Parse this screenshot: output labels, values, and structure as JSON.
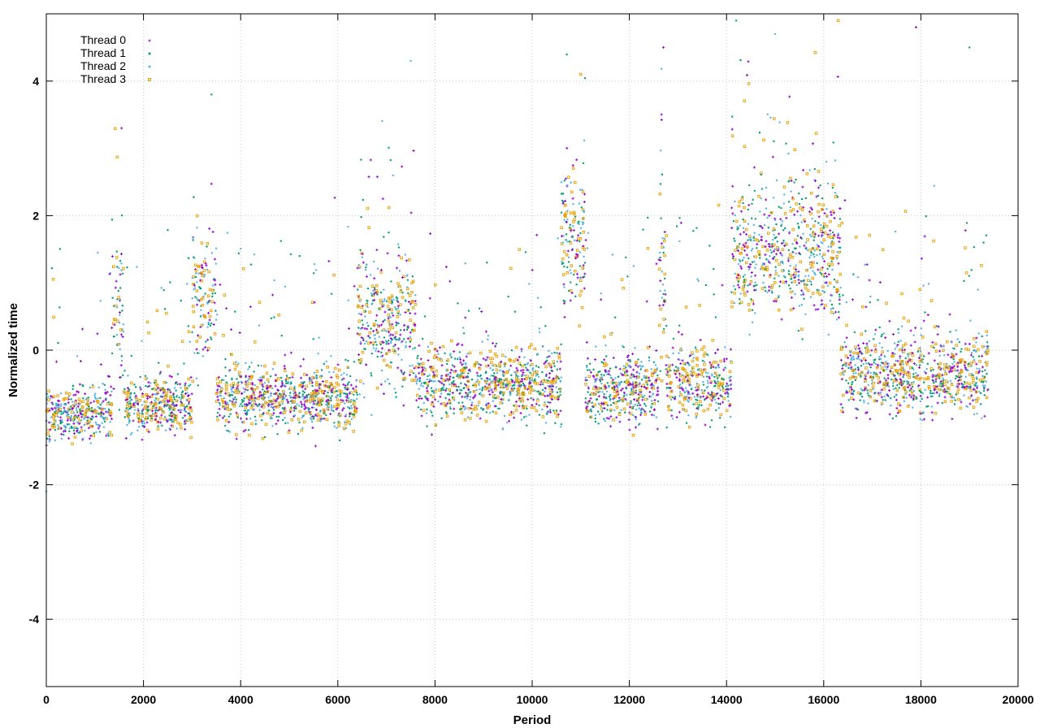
{
  "chart_data": {
    "type": "scatter",
    "xlabel": "Period",
    "ylabel": "Normalized time",
    "xlim": [
      0,
      20000
    ],
    "ylim": [
      -5,
      5
    ],
    "x_ticks": [
      0,
      2000,
      4000,
      6000,
      8000,
      10000,
      12000,
      14000,
      16000,
      18000,
      20000
    ],
    "y_ticks": [
      -4,
      -2,
      0,
      2,
      4
    ],
    "grid": true,
    "legend_position": "top-left",
    "x_max_data": 19400,
    "series": [
      {
        "name": "Thread 0",
        "color": "#9400d3",
        "marker": "plus"
      },
      {
        "name": "Thread 1",
        "color": "#009e73",
        "marker": "dot"
      },
      {
        "name": "Thread 2",
        "color": "#56b4e9",
        "marker": "dot"
      },
      {
        "name": "Thread 3",
        "color": "#e69f00",
        "marker": "square"
      }
    ],
    "segments": [
      {
        "x": [
          0,
          1350
        ],
        "center": -0.95,
        "spread": 0.35
      },
      {
        "x": [
          1350,
          1600
        ],
        "center": 0.6,
        "spread": 1.1
      },
      {
        "x": [
          1600,
          3000
        ],
        "center": -0.8,
        "spread": 0.4
      },
      {
        "x": [
          3000,
          3500
        ],
        "center": 0.8,
        "spread": 1.0
      },
      {
        "x": [
          3500,
          6400
        ],
        "center": -0.7,
        "spread": 0.45
      },
      {
        "x": [
          6400,
          7600
        ],
        "center": 0.4,
        "spread": 0.9
      },
      {
        "x": [
          7600,
          10600
        ],
        "center": -0.5,
        "spread": 0.5
      },
      {
        "x": [
          10600,
          11100
        ],
        "center": 1.7,
        "spread": 1.0
      },
      {
        "x": [
          11100,
          12600
        ],
        "center": -0.6,
        "spread": 0.5
      },
      {
        "x": [
          12600,
          12750
        ],
        "center": 1.2,
        "spread": 1.2
      },
      {
        "x": [
          12750,
          14100
        ],
        "center": -0.5,
        "spread": 0.5
      },
      {
        "x": [
          14100,
          16350
        ],
        "center": 1.4,
        "spread": 0.9
      },
      {
        "x": [
          16350,
          19400
        ],
        "center": -0.35,
        "spread": 0.55
      }
    ],
    "outliers": [
      {
        "x": 1550,
        "y": 3.3
      },
      {
        "x": 3400,
        "y": 3.8
      },
      {
        "x": 7500,
        "y": 4.3
      },
      {
        "x": 11000,
        "y": 4.1
      },
      {
        "x": 12700,
        "y": 4.5
      },
      {
        "x": 14200,
        "y": 4.9
      },
      {
        "x": 15000,
        "y": 4.7
      },
      {
        "x": 16300,
        "y": 4.9
      },
      {
        "x": 17900,
        "y": 4.8
      },
      {
        "x": 19000,
        "y": 4.5
      },
      {
        "x": 0,
        "y": -2.1
      }
    ]
  }
}
